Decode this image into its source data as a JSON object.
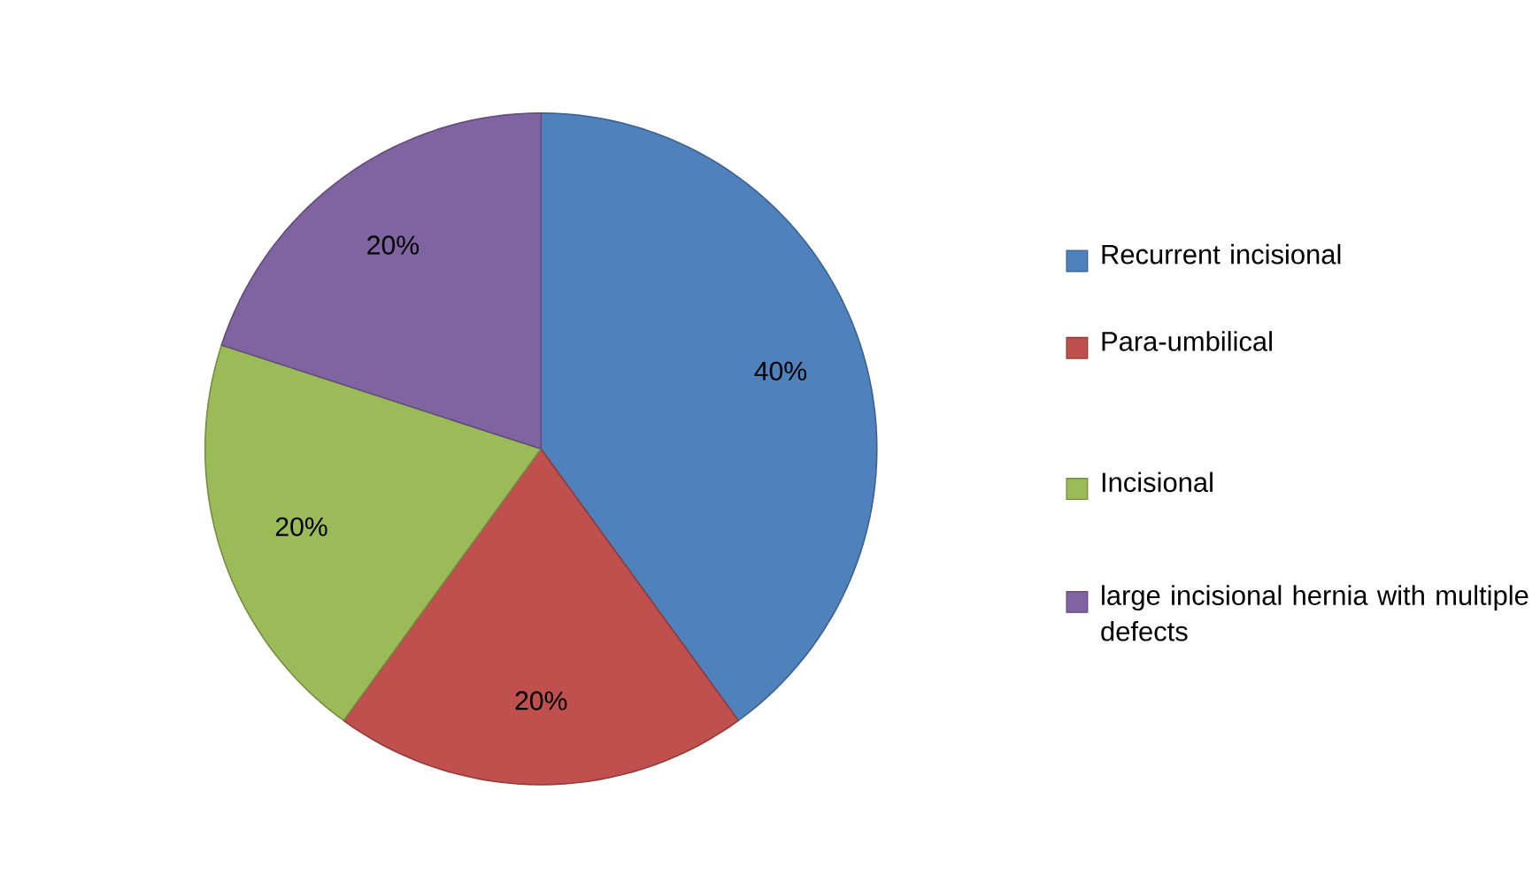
{
  "chart_data": {
    "type": "pie",
    "categories": [
      "Recurrent incisional",
      "Para-umbilical",
      "Incisional",
      "large incisional hernia with multiple defects"
    ],
    "values": [
      40,
      20,
      20,
      20
    ],
    "colors": [
      "#4f81bd",
      "#c0504d",
      "#9bbb59",
      "#8064a2"
    ],
    "value_labels": [
      "40%",
      "20%",
      "20%",
      "20%"
    ],
    "legend": "right"
  }
}
